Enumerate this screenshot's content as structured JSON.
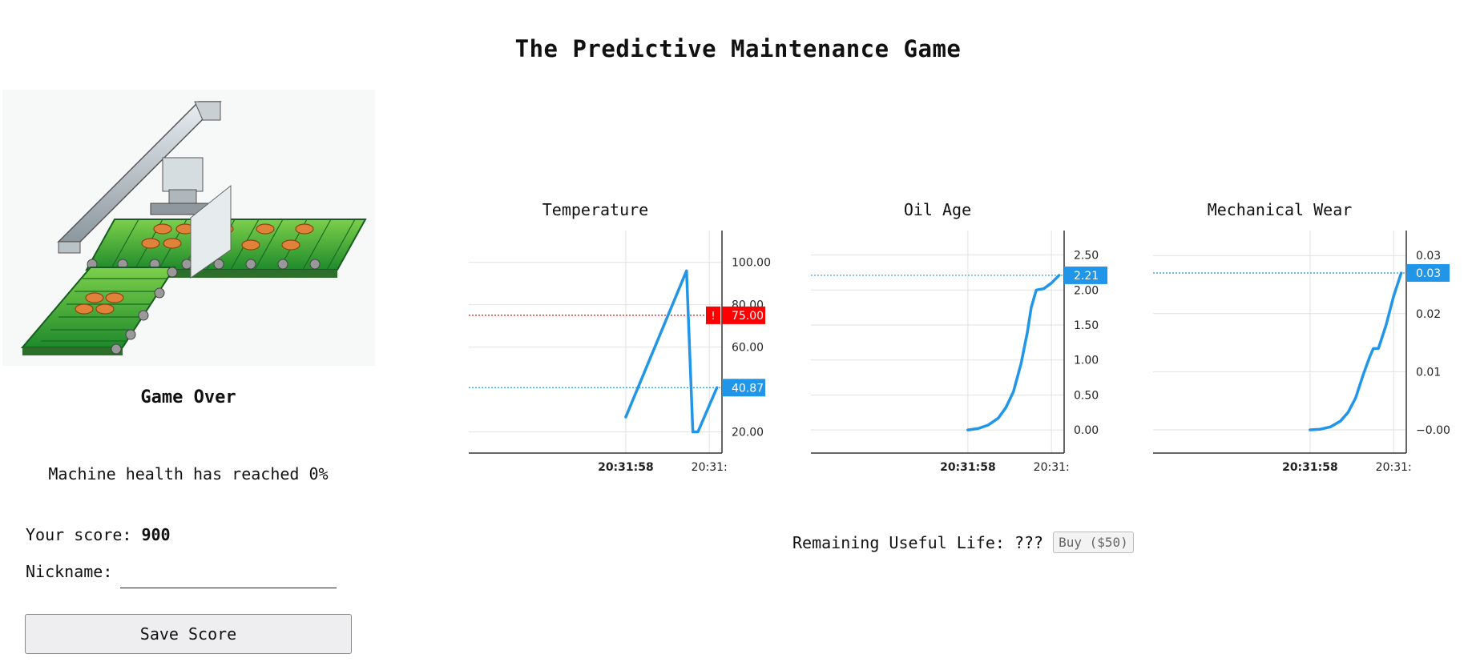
{
  "page": {
    "title": "The Predictive Maintenance Game"
  },
  "left_panel": {
    "status": "Game Over",
    "health_message": "Machine health has reached 0%",
    "score_label": "Your score:",
    "score_value": "900",
    "nickname_label": "Nickname:",
    "nickname_value": "",
    "save_button": "Save Score"
  },
  "rul": {
    "label": "Remaining Useful Life: ???",
    "buy_button": "Buy ($50)"
  },
  "colors": {
    "line": "#2196e8",
    "alert": "#ff0000",
    "grid": "#e2e2e2"
  },
  "chart_data": [
    {
      "type": "line",
      "title": "Temperature",
      "ylim": [
        10,
        115
      ],
      "y_ticks": [
        "100.00",
        "80.00",
        "60.00",
        "20.00"
      ],
      "y_tick_values": [
        100,
        80,
        60,
        20
      ],
      "x_ticks": [
        "20:31:58",
        "20:31:"
      ],
      "x_tick_positions": [
        0.62,
        0.95
      ],
      "x_ticks_bold": [
        true,
        false
      ],
      "series": [
        {
          "x": [
            0.62,
            0.86,
            0.885,
            0.905,
            0.98
          ],
          "y": [
            27,
            96,
            20,
            20,
            40.87
          ]
        }
      ],
      "current_value": "40.87",
      "current_y": 40.87,
      "threshold_label": "75.00",
      "threshold_y": 75,
      "threshold_flag": "!"
    },
    {
      "type": "line",
      "title": "Oil Age",
      "ylim": [
        -0.33,
        2.85
      ],
      "y_ticks": [
        "2.50",
        "2.00",
        "1.50",
        "1.00",
        "0.50",
        "0.00"
      ],
      "y_tick_values": [
        2.5,
        2.0,
        1.5,
        1.0,
        0.5,
        0.0
      ],
      "x_ticks": [
        "20:31:58",
        "20:31:"
      ],
      "x_tick_positions": [
        0.62,
        0.95
      ],
      "x_ticks_bold": [
        true,
        false
      ],
      "series": [
        {
          "x": [
            0.62,
            0.66,
            0.7,
            0.74,
            0.77,
            0.8,
            0.83,
            0.855,
            0.87,
            0.89,
            0.92,
            0.95,
            0.98
          ],
          "y": [
            0.0,
            0.02,
            0.07,
            0.17,
            0.32,
            0.55,
            0.95,
            1.4,
            1.75,
            2.0,
            2.02,
            2.1,
            2.21
          ]
        }
      ],
      "current_value": "2.21",
      "current_y": 2.21
    },
    {
      "type": "line",
      "title": "Mechanical Wear",
      "ylim": [
        -0.004,
        0.0343
      ],
      "y_ticks": [
        "0.03",
        "0.02",
        "0.01",
        "−0.00"
      ],
      "y_tick_values": [
        0.03,
        0.02,
        0.01,
        0.0
      ],
      "x_ticks": [
        "20:31:58",
        "20:31:"
      ],
      "x_tick_positions": [
        0.62,
        0.95
      ],
      "x_ticks_bold": [
        true,
        false
      ],
      "series": [
        {
          "x": [
            0.62,
            0.66,
            0.7,
            0.74,
            0.77,
            0.8,
            0.83,
            0.855,
            0.87,
            0.89,
            0.92,
            0.95,
            0.98
          ],
          "y": [
            0.0,
            0.0001,
            0.0005,
            0.0015,
            0.003,
            0.0055,
            0.0095,
            0.0125,
            0.014,
            0.014,
            0.018,
            0.023,
            0.027
          ]
        }
      ],
      "current_value": "0.03",
      "current_y": 0.027
    }
  ]
}
